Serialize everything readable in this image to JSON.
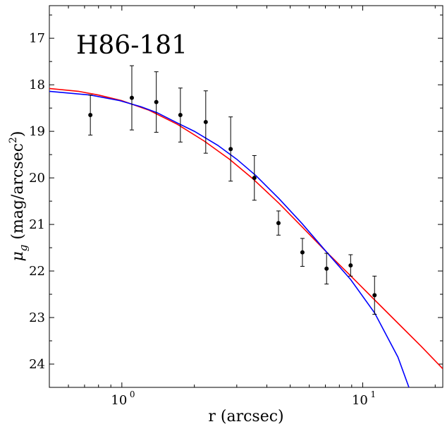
{
  "chart_data": {
    "type": "scatter",
    "title": "",
    "annotation": "H86-181",
    "xlabel": "r (arcsec)",
    "ylabel_main": "μ",
    "ylabel_sub": "g",
    "ylabel_rest": " (mag/arcsec",
    "ylabel_sup": "2",
    "ylabel_close": ")",
    "x_scale": "log",
    "y_inverted": true,
    "xlim": [
      0.5,
      21.5
    ],
    "ylim": [
      24.5,
      16.3
    ],
    "x_major_ticks": [
      1,
      10
    ],
    "x_tick_labels": [
      "10",
      "10"
    ],
    "x_tick_exponents": [
      "0",
      "1"
    ],
    "y_ticks": [
      17,
      18,
      19,
      20,
      21,
      22,
      23,
      24
    ],
    "y_tick_labels": [
      "17",
      "18",
      "19",
      "20",
      "21",
      "22",
      "23",
      "24"
    ],
    "points": [
      {
        "x": 0.74,
        "y": 18.65,
        "err": 0.43
      },
      {
        "x": 1.1,
        "y": 18.28,
        "err": 0.69
      },
      {
        "x": 1.39,
        "y": 18.37,
        "err": 0.65
      },
      {
        "x": 1.75,
        "y": 18.65,
        "err": 0.58
      },
      {
        "x": 2.23,
        "y": 18.8,
        "err": 0.67
      },
      {
        "x": 2.83,
        "y": 19.38,
        "err": 0.69
      },
      {
        "x": 3.55,
        "y": 20.0,
        "err": 0.48
      },
      {
        "x": 4.47,
        "y": 20.97,
        "err": 0.26
      },
      {
        "x": 5.62,
        "y": 21.6,
        "err": 0.3
      },
      {
        "x": 7.08,
        "y": 21.95,
        "err": 0.33
      },
      {
        "x": 8.91,
        "y": 21.88,
        "err": 0.23
      },
      {
        "x": 11.2,
        "y": 22.52,
        "err": 0.41
      }
    ],
    "series": [
      {
        "color": "#ff0000",
        "x": [
          0.5,
          0.66,
          0.8,
          1.0,
          1.3,
          1.7,
          2.2,
          2.8,
          3.5,
          4.5,
          5.6,
          7.1,
          8.9,
          11.2,
          14.0,
          17.5,
          21.5
        ],
        "y": [
          18.08,
          18.14,
          18.22,
          18.34,
          18.55,
          18.85,
          19.21,
          19.6,
          20.02,
          20.55,
          21.05,
          21.6,
          22.1,
          22.62,
          23.12,
          23.62,
          24.1
        ]
      },
      {
        "color": "#0000ff",
        "x": [
          0.5,
          0.74,
          0.98,
          1.2,
          1.4,
          1.7,
          2.0,
          2.5,
          3.0,
          3.6,
          4.5,
          5.6,
          7.1,
          8.9,
          11.2,
          14.0,
          16.6
        ],
        "y": [
          18.14,
          18.22,
          18.34,
          18.47,
          18.6,
          18.82,
          19.0,
          19.3,
          19.6,
          19.95,
          20.45,
          20.98,
          21.6,
          22.18,
          22.9,
          23.85,
          24.9
        ]
      }
    ]
  }
}
